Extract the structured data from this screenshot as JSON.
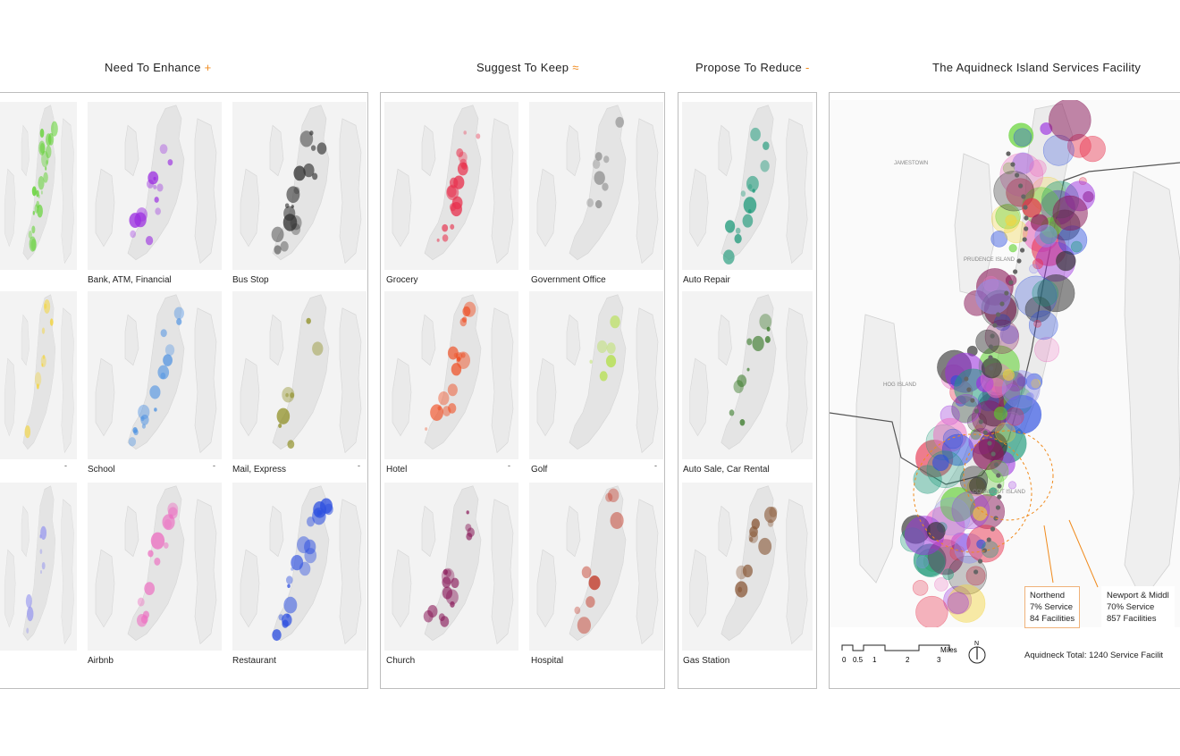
{
  "headings": {
    "enhance": {
      "text": "Need To Enhance",
      "mark": "+"
    },
    "keep": {
      "text": "Suggest To Keep",
      "mark": "≈"
    },
    "reduce": {
      "text": "Propose To Reduce",
      "mark": "-"
    },
    "overview": {
      "text": "The Aquidneck Island Services Facility"
    }
  },
  "colors": {
    "accent": "#f08a1c",
    "land": "#e9e9e9",
    "water": "#ffffff",
    "green": "#5bd12a",
    "purple": "#9b2fe0",
    "black": "#333333",
    "yellow": "#f4d43a",
    "blue": "#4a90e2",
    "olive": "#8a8a1a",
    "lavender": "#8f8ff0",
    "pink": "#ec72c2",
    "royal": "#2d4fe0",
    "red": "#e8324e",
    "grey": "#8a8a8a",
    "orange": "#ef4a1e",
    "lime": "#b3e04a",
    "maroon": "#8a1a5a",
    "brick": "#c23a28",
    "teal": "#1e9a7a",
    "darkgreen": "#3a7a2a",
    "brown": "#8a5a3a"
  },
  "enhance": {
    "tiles": [
      {
        "label": "",
        "color": "green",
        "density": 24
      },
      {
        "label": "Bank, ATM, Financial",
        "color": "purple",
        "density": 14
      },
      {
        "label": "Bus Stop",
        "color": "black",
        "density": 18
      },
      {
        "label": "",
        "color": "yellow",
        "density": 10
      },
      {
        "label": "School",
        "color": "blue",
        "density": 16
      },
      {
        "label": "Mail, Express",
        "color": "olive",
        "density": 8
      },
      {
        "label": "",
        "color": "lavender",
        "density": 8
      },
      {
        "label": "Airbnb",
        "color": "pink",
        "density": 14
      },
      {
        "label": "Restaurant",
        "color": "royal",
        "density": 22
      }
    ],
    "dashes": [
      "-",
      "-",
      "-"
    ]
  },
  "keep": {
    "tiles": [
      {
        "label": "Grocery",
        "color": "red",
        "density": 18
      },
      {
        "label": "Government Office",
        "color": "grey",
        "density": 8
      },
      {
        "label": "Hotel",
        "color": "orange",
        "density": 18
      },
      {
        "label": "Golf",
        "color": "lime",
        "density": 6
      },
      {
        "label": "Church",
        "color": "maroon",
        "density": 16
      },
      {
        "label": "Hospital",
        "color": "brick",
        "density": 8
      }
    ],
    "dashes": [
      "-",
      "-"
    ]
  },
  "reduce": {
    "tiles": [
      {
        "label": "Auto Repair",
        "color": "teal",
        "density": 14
      },
      {
        "label": "Auto Sale, Car Rental",
        "color": "darkgreen",
        "density": 10
      },
      {
        "label": "Gas Station",
        "color": "brown",
        "density": 12
      }
    ]
  },
  "overview": {
    "callouts": [
      {
        "name": "Northend",
        "share": "7% Service",
        "count": "84 Facilities"
      },
      {
        "name": "Newport & Middl",
        "share": "70% Service",
        "count": "857 Facilities"
      }
    ],
    "total": "Aquidneck Total: 1240 Service Facilit",
    "scale": {
      "unit": "Miles",
      "ticks": [
        "0",
        "0.5",
        "1",
        "2",
        "3"
      ],
      "north": "N"
    },
    "map_labels": [
      "JAMESTOWN",
      "PRUDENCE ISLAND",
      "HOG ISLAND",
      "CONANICUT ISLAND"
    ]
  }
}
